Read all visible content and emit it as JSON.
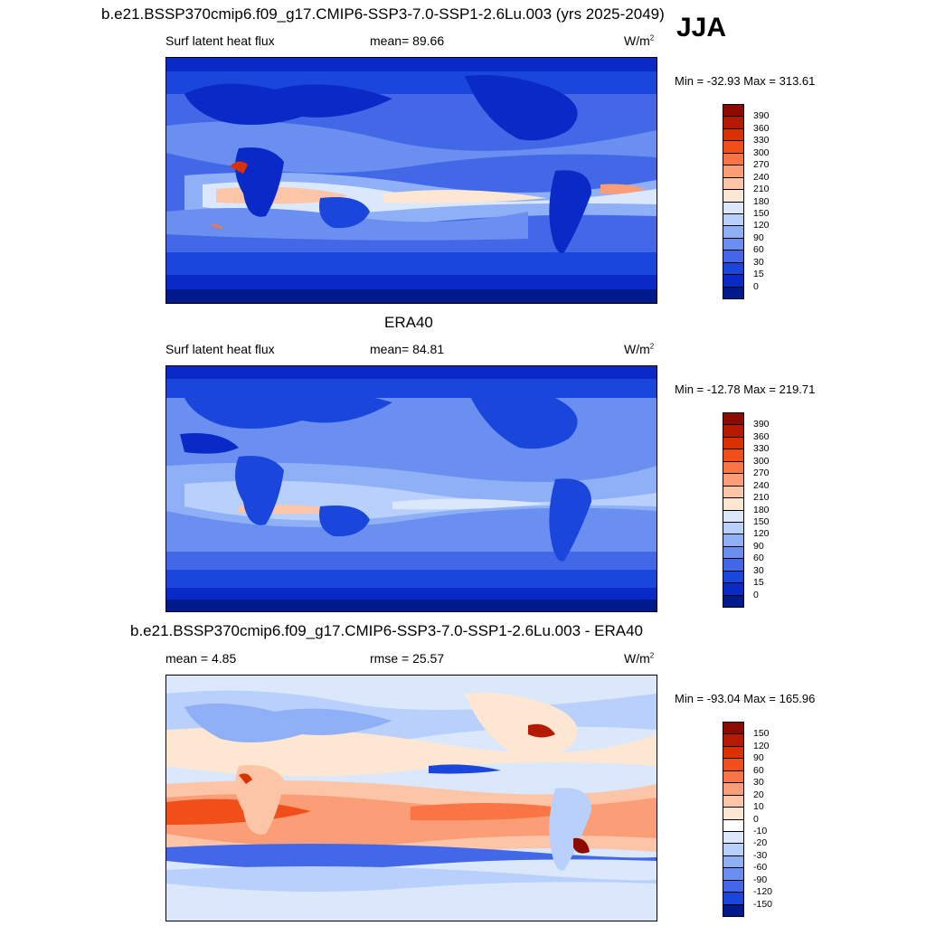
{
  "title": "b.e21.BSSP370cmip6.f09_g17.CMIP6-SSP3-7.0-SSP1-2.6Lu.003 (yrs 2025-2049)",
  "season": "JJA",
  "panels": [
    {
      "id": "model",
      "heading": "",
      "left_label": "Surf latent heat flux",
      "center_label": "mean=  89.66",
      "units_base": "W/m",
      "units_exp": "2",
      "minmax": "Min = -32.93 Max = 313.61",
      "colorbar": {
        "labels": [
          "390",
          "360",
          "330",
          "300",
          "270",
          "240",
          "210",
          "180",
          "150",
          "120",
          "90",
          "60",
          "30",
          "15",
          "0"
        ],
        "colors": [
          "#8c0a00",
          "#b51a00",
          "#d93200",
          "#f24e1a",
          "#fa7546",
          "#fb9e78",
          "#fcc5a8",
          "#fde6d2",
          "#dbe8fc",
          "#b8d0fb",
          "#8fb0f7",
          "#6a8ff0",
          "#4268e8",
          "#1a46dc",
          "#0a2ac8",
          "#001a8c"
        ]
      },
      "regions": {
        "land": "#0a2ac8",
        "warm_band": "#f9d7c4"
      }
    },
    {
      "id": "obs",
      "heading": "ERA40",
      "left_label": "Surf latent heat flux",
      "center_label": "mean=  84.81",
      "units_base": "W/m",
      "units_exp": "2",
      "minmax": "Min = -12.78 Max = 219.71",
      "colorbar": {
        "labels": [
          "390",
          "360",
          "330",
          "300",
          "270",
          "240",
          "210",
          "180",
          "150",
          "120",
          "90",
          "60",
          "30",
          "15",
          "0"
        ],
        "colors": [
          "#8c0a00",
          "#b51a00",
          "#d93200",
          "#f24e1a",
          "#fa7546",
          "#fb9e78",
          "#fcc5a8",
          "#fde6d2",
          "#dbe8fc",
          "#b8d0fb",
          "#8fb0f7",
          "#6a8ff0",
          "#4268e8",
          "#1a46dc",
          "#0a2ac8",
          "#001a8c"
        ]
      }
    },
    {
      "id": "diff",
      "heading": "b.e21.BSSP370cmip6.f09_g17.CMIP6-SSP3-7.0-SSP1-2.6Lu.003 - ERA40",
      "left_label": "mean =   4.85",
      "center_label": "rmse =  25.57",
      "units_base": "W/m",
      "units_exp": "2",
      "minmax": "Min = -93.04 Max = 165.96",
      "colorbar": {
        "labels": [
          "150",
          "120",
          "90",
          "60",
          "30",
          "20",
          "10",
          "0",
          "-10",
          "-20",
          "-30",
          "-60",
          "-90",
          "-120",
          "-150"
        ],
        "colors": [
          "#8c0a00",
          "#b51a00",
          "#d93200",
          "#f24e1a",
          "#fa7546",
          "#fb9e78",
          "#fcc5a8",
          "#fde6d2",
          "#ffffff",
          "#dbe8fc",
          "#b8d0fb",
          "#8fb0f7",
          "#6a8ff0",
          "#4268e8",
          "#1a46dc",
          "#001a8c"
        ]
      }
    }
  ]
}
